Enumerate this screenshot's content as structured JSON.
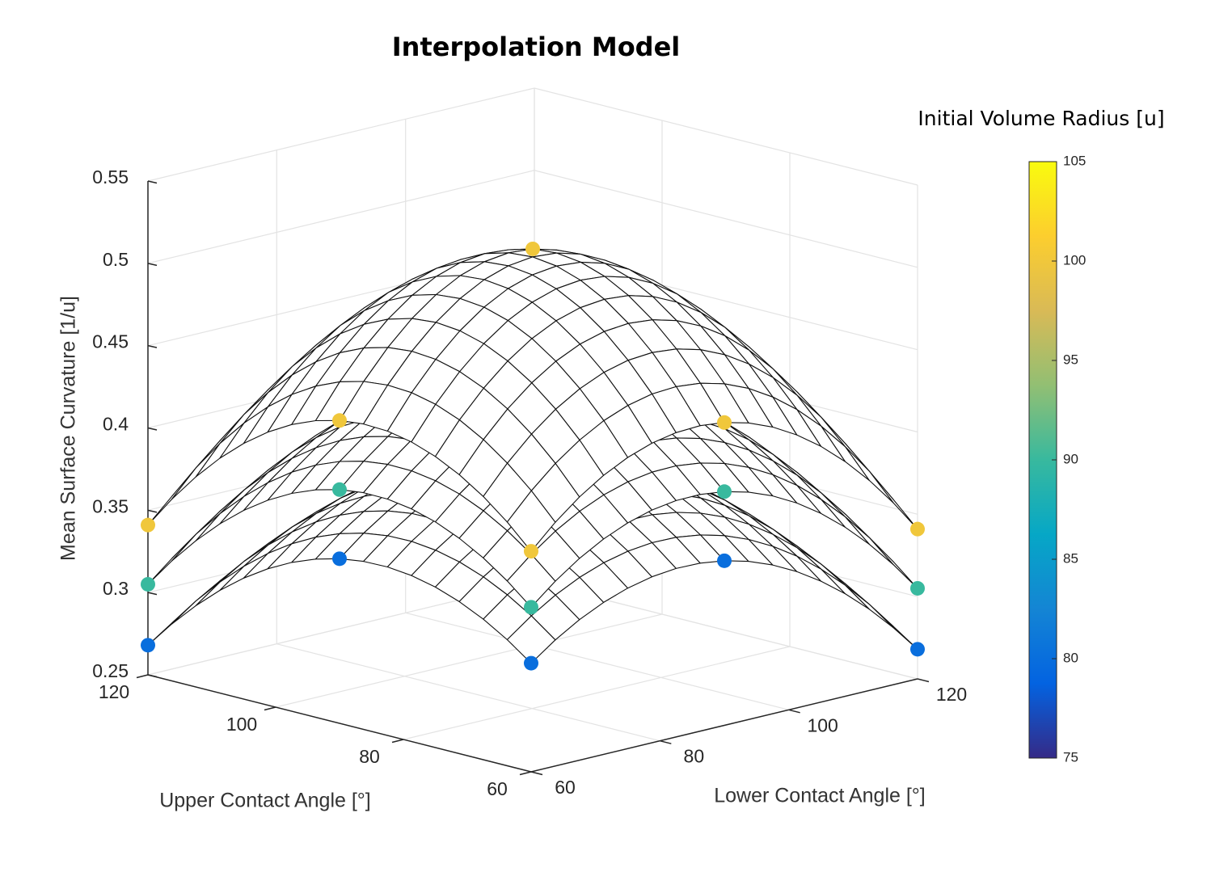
{
  "chart_data": {
    "type": "surface3d",
    "title": "Interpolation Model",
    "xlabel": "Upper Contact Angle [°]",
    "ylabel": "Lower Contact Angle [°]",
    "zlabel": "Mean Surface Curvature [1/u]",
    "colorbar_label": "Initial Volume Radius [u]",
    "xlim": [
      60,
      120
    ],
    "xticks": [
      60,
      80,
      100,
      120
    ],
    "ylim": [
      60,
      120
    ],
    "yticks": [
      60,
      80,
      100,
      120
    ],
    "zlim": [
      0.25,
      0.55
    ],
    "zticks": [
      0.25,
      0.3,
      0.35,
      0.4,
      0.45,
      0.5,
      0.55
    ],
    "clim": [
      75,
      105
    ],
    "cticks": [
      75,
      80,
      85,
      90,
      95,
      100,
      105
    ],
    "colormap": [
      "#352a87",
      "#0363e1",
      "#1485d4",
      "#06a7c6",
      "#38b99e",
      "#92bf73",
      "#d9ba56",
      "#fcce2e",
      "#f9fb0e"
    ],
    "grid": true,
    "x": [
      60,
      90,
      120
    ],
    "y": [
      60,
      90,
      120
    ],
    "series": [
      {
        "value": 80,
        "z": [
          [
            0.316,
            0.35,
            0.268
          ],
          [
            0.35,
            0.39,
            0.302
          ],
          [
            0.268,
            0.302,
            0.23
          ]
        ]
      },
      {
        "value": 90,
        "z": [
          [
            0.35,
            0.392,
            0.305
          ],
          [
            0.392,
            0.44,
            0.347
          ],
          [
            0.305,
            0.347,
            0.26
          ]
        ]
      },
      {
        "value": 100,
        "z": [
          [
            0.384,
            0.434,
            0.341
          ],
          [
            0.434,
            0.51,
            0.391
          ],
          [
            0.341,
            0.391,
            0.298
          ]
        ]
      }
    ]
  }
}
